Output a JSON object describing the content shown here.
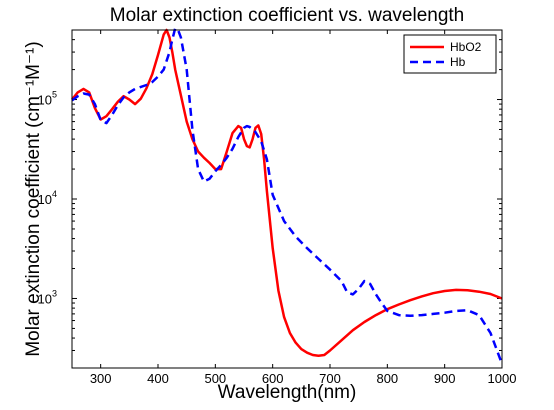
{
  "chart_data": {
    "type": "line",
    "title": "Molar extinction coefficient vs. wavelength",
    "xlabel": "Wavelength(nm)",
    "ylabel": "Molar extinction coefficient (cm⁻¹M⁻¹)",
    "xlim": [
      250,
      1000
    ],
    "ylim": [
      200,
      500000
    ],
    "yscale": "log",
    "grid": false,
    "legend_position": "top-right",
    "x_ticks": [
      {
        "value": 300,
        "label": "300"
      },
      {
        "value": 400,
        "label": "400"
      },
      {
        "value": 500,
        "label": "500"
      },
      {
        "value": 600,
        "label": "600"
      },
      {
        "value": 700,
        "label": "700"
      },
      {
        "value": 800,
        "label": "800"
      },
      {
        "value": 900,
        "label": "900"
      },
      {
        "value": 1000,
        "label": "1000"
      }
    ],
    "y_ticks": [
      {
        "value": 1000,
        "base": "10",
        "exp": "3"
      },
      {
        "value": 10000,
        "base": "10",
        "exp": "4"
      },
      {
        "value": 100000,
        "base": "10",
        "exp": "5"
      }
    ],
    "series": [
      {
        "name": "HbO2",
        "color": "#ff0000",
        "dash": "solid",
        "x": [
          250,
          260,
          270,
          280,
          290,
          300,
          310,
          320,
          330,
          340,
          350,
          360,
          370,
          380,
          390,
          400,
          410,
          415,
          420,
          425,
          430,
          440,
          450,
          460,
          470,
          480,
          490,
          500,
          510,
          520,
          530,
          540,
          545,
          550,
          555,
          560,
          565,
          570,
          575,
          580,
          585,
          590,
          600,
          610,
          620,
          630,
          640,
          650,
          660,
          670,
          680,
          690,
          700,
          720,
          740,
          760,
          780,
          800,
          820,
          840,
          860,
          880,
          900,
          920,
          940,
          960,
          980,
          1000
        ],
        "y": [
          100000,
          118000,
          128000,
          118000,
          82000,
          63000,
          68000,
          80000,
          95000,
          108000,
          100000,
          90000,
          102000,
          130000,
          180000,
          280000,
          450000,
          500000,
          420000,
          300000,
          200000,
          110000,
          60000,
          40000,
          30000,
          26000,
          23000,
          20000,
          20000,
          30000,
          46000,
          54000,
          52000,
          40000,
          34000,
          33000,
          40000,
          52000,
          55000,
          45000,
          25000,
          12000,
          3200,
          1200,
          650,
          450,
          360,
          310,
          285,
          270,
          265,
          270,
          300,
          380,
          480,
          580,
          680,
          780,
          870,
          960,
          1050,
          1130,
          1190,
          1220,
          1210,
          1170,
          1110,
          1000
        ]
      },
      {
        "name": "Hb",
        "color": "#0000ff",
        "dash": "dashed",
        "x": [
          250,
          260,
          270,
          280,
          290,
          300,
          310,
          320,
          330,
          340,
          350,
          360,
          370,
          380,
          390,
          400,
          410,
          420,
          425,
          430,
          435,
          440,
          450,
          460,
          470,
          480,
          490,
          500,
          510,
          520,
          530,
          540,
          550,
          555,
          560,
          570,
          580,
          590,
          600,
          620,
          640,
          660,
          680,
          700,
          720,
          730,
          740,
          750,
          760,
          770,
          780,
          790,
          800,
          820,
          840,
          860,
          880,
          900,
          920,
          940,
          960,
          980,
          1000
        ],
        "y": [
          98000,
          108000,
          115000,
          112000,
          90000,
          62000,
          58000,
          70000,
          88000,
          105000,
          118000,
          128000,
          134000,
          140000,
          150000,
          170000,
          200000,
          300000,
          400000,
          520000,
          500000,
          420000,
          200000,
          50000,
          20000,
          15000,
          16000,
          19000,
          22000,
          26000,
          32000,
          42000,
          52000,
          54000,
          53000,
          47000,
          38000,
          25000,
          11000,
          6000,
          4200,
          3200,
          2500,
          1950,
          1500,
          1150,
          1100,
          1250,
          1500,
          1400,
          1100,
          900,
          750,
          680,
          670,
          680,
          700,
          720,
          750,
          760,
          680,
          450,
          220
        ]
      }
    ]
  }
}
